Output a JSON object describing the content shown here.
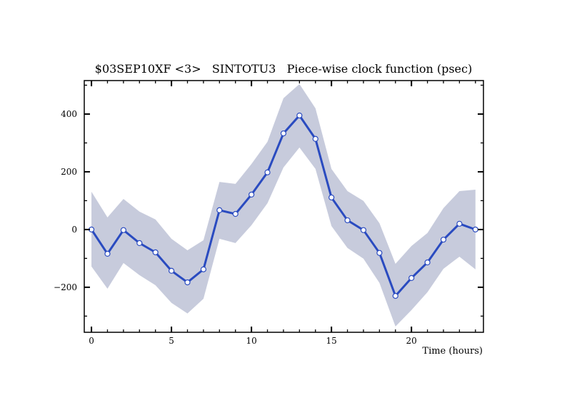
{
  "chart_data": {
    "type": "line",
    "title": "$03SEP10XF <3>   SINTOTU3   Piece-wise clock function (psec)",
    "xlabel": "Time (hours)",
    "ylabel": "",
    "xlim": [
      -0.45,
      24.5
    ],
    "ylim": [
      -356,
      516
    ],
    "x_ticks": [
      0,
      5,
      10,
      15,
      20
    ],
    "x_tick_labels": [
      "0",
      "5",
      "10",
      "15",
      "20"
    ],
    "y_ticks": [
      -200,
      0,
      200,
      400
    ],
    "y_tick_labels": [
      "−200",
      "0",
      "200",
      "400"
    ],
    "grid": false,
    "x": [
      0,
      1,
      2,
      3,
      4,
      5,
      6,
      7,
      8,
      9,
      10,
      11,
      12,
      13,
      14,
      15,
      16,
      17,
      18,
      19,
      20,
      21,
      22,
      23,
      24
    ],
    "series": [
      {
        "name": "clock function",
        "color": "#2a4bc0",
        "values": [
          0,
          -84,
          -2,
          -47,
          -79,
          -143,
          -183,
          -138,
          67,
          54,
          121,
          198,
          333,
          395,
          314,
          111,
          32,
          -2,
          -81,
          -230,
          -168,
          -114,
          -35,
          20,
          0
        ]
      }
    ],
    "band": {
      "color": "#c7cbdc",
      "upper": [
        131,
        42,
        106,
        62,
        35,
        -32,
        -72,
        -37,
        165,
        158,
        227,
        304,
        455,
        504,
        420,
        210,
        133,
        99,
        22,
        -119,
        -57,
        -12,
        74,
        133,
        138
      ],
      "lower": [
        -128,
        -205,
        -116,
        -158,
        -193,
        -254,
        -291,
        -240,
        -32,
        -47,
        15,
        91,
        215,
        284,
        210,
        12,
        -64,
        -101,
        -185,
        -336,
        -279,
        -217,
        -136,
        -94,
        -138
      ]
    }
  }
}
